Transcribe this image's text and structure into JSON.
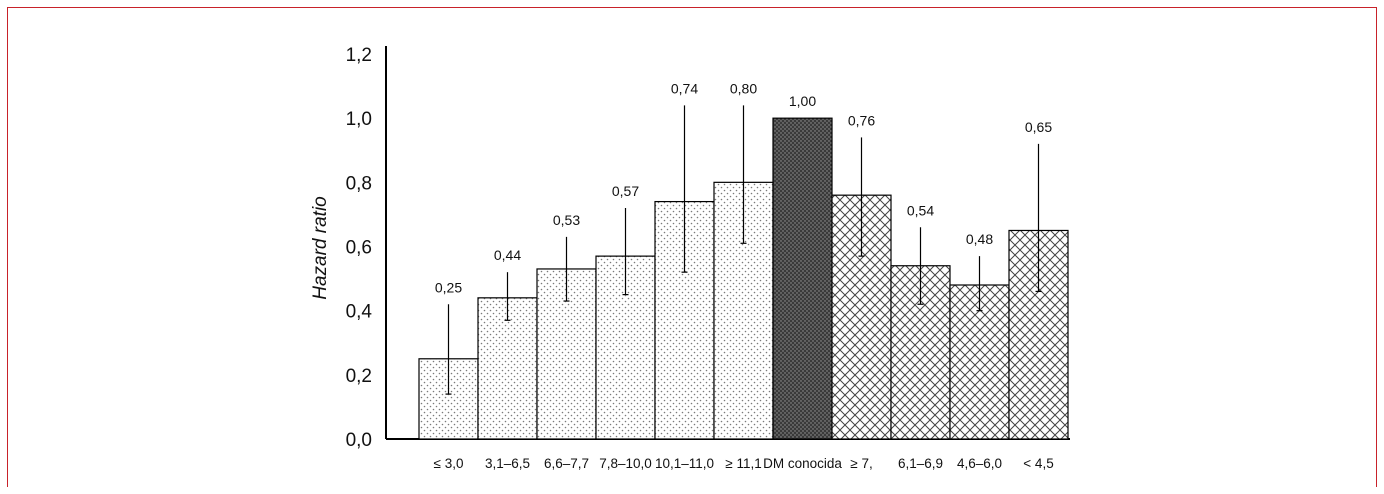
{
  "chart_data": {
    "type": "bar",
    "title": "",
    "xlabel": "",
    "ylabel": "Hazard ratio",
    "ylim": [
      0,
      1.2
    ],
    "yticks": [
      0,
      0.2,
      0.4,
      0.6,
      0.8,
      1.0,
      1.2
    ],
    "ytick_labels": [
      "0,0",
      "0,2",
      "0,4",
      "0,6",
      "0,8",
      "1,0",
      "1,2"
    ],
    "grid": false,
    "legend": "none",
    "categories": [
      "≤ 3,0",
      "3,1–6,5",
      "6,6–7,7",
      "7,8–10,0",
      "10,1–11,0",
      "≥ 11,1",
      "DM conocida",
      "≥ 7,",
      "6,1–6,9",
      "4,6–6,0",
      "< 4,5"
    ],
    "values": [
      0.25,
      0.44,
      0.53,
      0.57,
      0.74,
      0.8,
      1.0,
      0.76,
      0.54,
      0.48,
      0.65
    ],
    "value_labels": [
      "0,25",
      "0,44",
      "0,53",
      "0,57",
      "0,74",
      "0,80",
      "1,00",
      "0,76",
      "0,54",
      "0,48",
      "0,65"
    ],
    "ci_upper": [
      0.42,
      0.52,
      0.63,
      0.72,
      1.04,
      1.04,
      null,
      0.94,
      0.66,
      0.57,
      0.92
    ],
    "ci_lower": [
      0.14,
      0.37,
      0.43,
      0.45,
      0.52,
      0.61,
      null,
      0.57,
      0.42,
      0.4,
      0.46
    ],
    "fill_patterns": [
      "dots",
      "dots",
      "dots",
      "dots",
      "dots",
      "dots",
      "dense",
      "crosshatch",
      "crosshatch",
      "crosshatch",
      "crosshatch"
    ]
  }
}
